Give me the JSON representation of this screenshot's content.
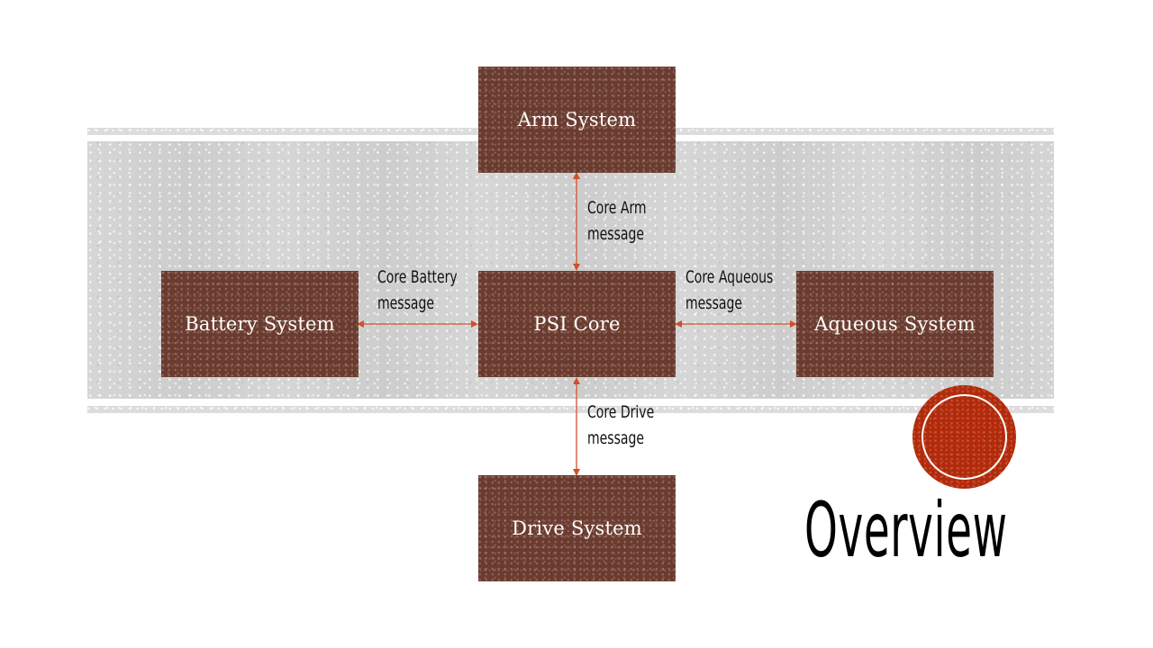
{
  "slide": {
    "title": "Overview"
  },
  "diagram": {
    "nodes": {
      "arm": "Arm System",
      "battery": "Battery System",
      "core": "PSI Core",
      "aqueous": "Aqueous System",
      "drive": "Drive System"
    },
    "edges": {
      "arm": [
        "Core Arm",
        "message"
      ],
      "battery": [
        "Core Battery",
        "message"
      ],
      "aqueous": [
        "Core Aqueous",
        "message"
      ],
      "drive": [
        "Core Drive",
        "message"
      ]
    }
  },
  "colors": {
    "node_fill": "#6a3b2e",
    "connector": "#d0502a",
    "accent_circle": "#b22a0a",
    "band": "#d3d3d3"
  }
}
